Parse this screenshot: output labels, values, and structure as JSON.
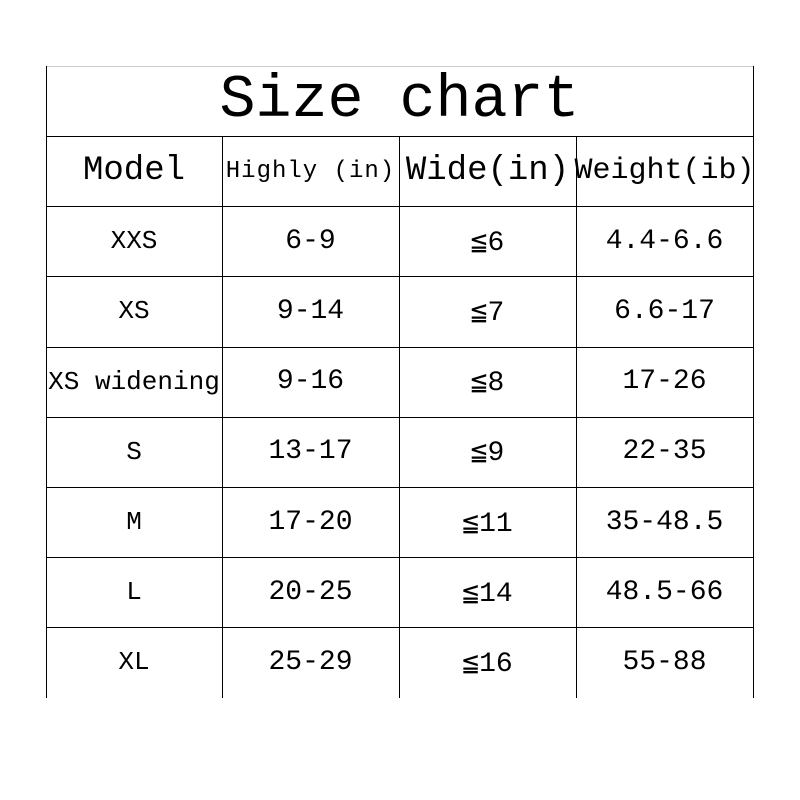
{
  "header": {
    "title": "Size chart"
  },
  "table": {
    "columns": [
      "Model",
      "Highly (in)",
      "Wide(in)",
      "Weight(ib)"
    ],
    "rows": [
      [
        "XXS",
        "6-9",
        "≦6",
        "4.4-6.6"
      ],
      [
        "XS",
        "9-14",
        "≦7",
        "6.6-17"
      ],
      [
        "XS widening",
        "9-16",
        "≦8",
        "17-26"
      ],
      [
        "S",
        "13-17",
        "≦9",
        "22-35"
      ],
      [
        "M",
        "17-20",
        "≦11",
        "35-48.5"
      ],
      [
        "L",
        "20-25",
        "≦14",
        "48.5-66"
      ],
      [
        "XL",
        "25-29",
        "≦16",
        "55-88"
      ]
    ]
  }
}
